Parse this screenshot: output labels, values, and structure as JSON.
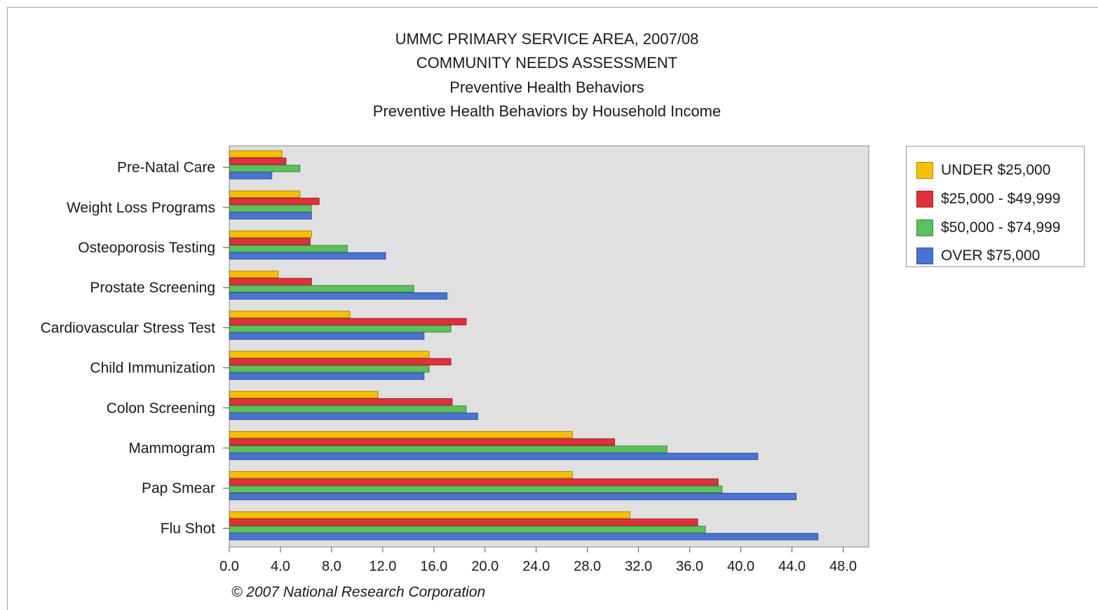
{
  "chart_data": {
    "type": "bar",
    "orientation": "horizontal",
    "title_lines": [
      "UMMC PRIMARY SERVICE AREA, 2007/08",
      "COMMUNITY NEEDS ASSESSMENT",
      "Preventive Health Behaviors",
      "Preventive Health Behaviors by Household Income"
    ],
    "footer": "© 2007 National Research Corporation",
    "xlim": [
      0,
      50
    ],
    "xticks": [
      "0.0",
      "4.0",
      "8.0",
      "12.0",
      "16.0",
      "20.0",
      "24.0",
      "28.0",
      "32.0",
      "36.0",
      "40.0",
      "44.0",
      "48.0"
    ],
    "xtick_values": [
      0,
      4,
      8,
      12,
      16,
      20,
      24,
      28,
      32,
      36,
      40,
      44,
      48
    ],
    "grid": false,
    "legend_placement": "right",
    "categories": [
      "Pre-Natal Care",
      "Weight Loss Programs",
      "Osteoporosis Testing",
      "Prostate Screening",
      "Cardiovascular Stress Test",
      "Child Immunization",
      "Colon Screening",
      "Mammogram",
      "Pap Smear",
      "Flu Shot"
    ],
    "series": [
      {
        "name": "UNDER $25,000",
        "color": "#f5c000",
        "values": [
          4.1,
          5.5,
          6.4,
          3.8,
          9.4,
          15.6,
          11.6,
          26.8,
          26.8,
          31.3
        ]
      },
      {
        "name": "$25,000 - $49,999",
        "color": "#e0303a",
        "values": [
          4.4,
          7.0,
          6.3,
          6.4,
          18.5,
          17.3,
          17.4,
          30.1,
          38.2,
          36.6
        ]
      },
      {
        "name": "$50,000 - $74,999",
        "color": "#5cc15c",
        "values": [
          5.5,
          6.4,
          9.2,
          14.4,
          17.3,
          15.6,
          18.5,
          34.2,
          38.5,
          37.2
        ]
      },
      {
        "name": "OVER $75,000",
        "color": "#4a74d4",
        "values": [
          3.3,
          6.4,
          12.2,
          17.0,
          15.2,
          15.2,
          19.4,
          41.3,
          44.3,
          46.0
        ]
      }
    ],
    "plot_background": "#e0e0e0"
  }
}
